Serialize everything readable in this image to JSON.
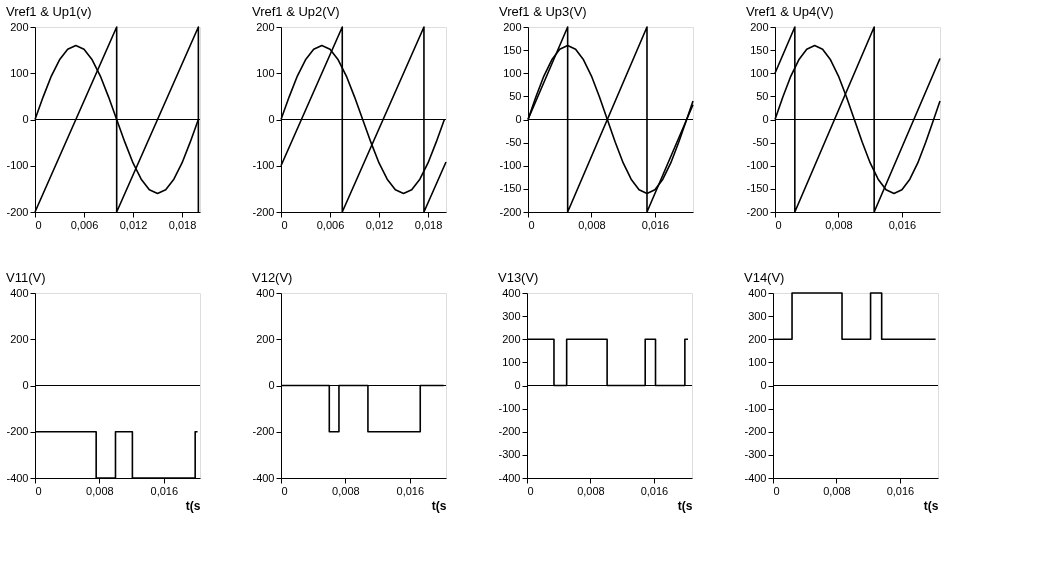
{
  "chart_data": [
    {
      "type": "line",
      "title": "Vref1 & Up1(v)",
      "xlim": [
        0,
        0.0202
      ],
      "ylim": [
        -200,
        200
      ],
      "xticks": [
        0,
        {
          "value": 0.006,
          "label": "0,006"
        },
        {
          "value": 0.012,
          "label": "0,012"
        },
        {
          "value": 0.018,
          "label": "0,018"
        }
      ],
      "yticks": [
        -200,
        -100,
        0,
        100,
        200
      ],
      "grid": false,
      "ref_lines": [
        {
          "axis": "y",
          "value": 0
        }
      ],
      "series": [
        {
          "color": "#000000",
          "x": [
            0,
            0.001,
            0.002,
            0.003,
            0.004,
            0.005,
            0.006,
            0.007,
            0.008,
            0.009,
            0.01,
            0.011,
            0.012,
            0.013,
            0.014,
            0.015,
            0.016,
            0.017,
            0.018,
            0.019,
            0.02
          ],
          "values": [
            0,
            49,
            94,
            129,
            152,
            160,
            152,
            129,
            94,
            49,
            0,
            -49,
            -94,
            -129,
            -152,
            -160,
            -152,
            -129,
            -94,
            -49,
            0
          ]
        },
        {
          "color": "#000000",
          "x": [
            0,
            0.01,
            0.01,
            0.02,
            0.02
          ],
          "values": [
            -200,
            200,
            -200,
            200,
            -200
          ]
        }
      ]
    },
    {
      "type": "line",
      "title": "Vref1 & Up2(V)",
      "xlim": [
        0,
        0.0202
      ],
      "ylim": [
        -200,
        200
      ],
      "xticks": [
        0,
        {
          "value": 0.006,
          "label": "0,006"
        },
        {
          "value": 0.012,
          "label": "0,012"
        },
        {
          "value": 0.018,
          "label": "0,018"
        }
      ],
      "yticks": [
        -200,
        -100,
        0,
        100,
        200
      ],
      "grid": false,
      "ref_lines": [
        {
          "axis": "y",
          "value": 0
        }
      ],
      "series": [
        {
          "color": "#000000",
          "x": [
            0,
            0.001,
            0.002,
            0.003,
            0.004,
            0.005,
            0.006,
            0.007,
            0.008,
            0.009,
            0.01,
            0.011,
            0.012,
            0.013,
            0.014,
            0.015,
            0.016,
            0.017,
            0.018,
            0.019,
            0.02
          ],
          "values": [
            0,
            49,
            94,
            129,
            152,
            160,
            152,
            129,
            94,
            49,
            0,
            -49,
            -94,
            -129,
            -152,
            -160,
            -152,
            -129,
            -94,
            -49,
            0
          ]
        },
        {
          "color": "#000000",
          "x": [
            0,
            0.0075,
            0.0075,
            0.0175,
            0.0175,
            0.0202
          ],
          "values": [
            -100,
            200,
            -200,
            200,
            -200,
            -92
          ]
        }
      ]
    },
    {
      "type": "line",
      "title": "Vref1 & Up3(V)",
      "xlim": [
        0,
        0.0208
      ],
      "ylim": [
        -200,
        200
      ],
      "xticks": [
        0,
        {
          "value": 0.008,
          "label": "0,008"
        },
        {
          "value": 0.016,
          "label": "0,016"
        }
      ],
      "yticks": [
        -200,
        -150,
        -100,
        -50,
        0,
        50,
        100,
        150,
        200
      ],
      "grid": false,
      "ref_lines": [
        {
          "axis": "y",
          "value": 0
        }
      ],
      "series": [
        {
          "color": "#000000",
          "x": [
            0,
            0.001,
            0.002,
            0.003,
            0.004,
            0.005,
            0.006,
            0.007,
            0.008,
            0.009,
            0.01,
            0.011,
            0.012,
            0.013,
            0.014,
            0.015,
            0.016,
            0.017,
            0.018,
            0.019,
            0.02,
            0.0208
          ],
          "values": [
            0,
            49,
            94,
            129,
            152,
            160,
            152,
            129,
            94,
            49,
            0,
            -49,
            -94,
            -129,
            -152,
            -160,
            -152,
            -129,
            -94,
            -49,
            0,
            40
          ]
        },
        {
          "color": "#000000",
          "x": [
            0,
            0.005,
            0.005,
            0.015,
            0.015,
            0.0208
          ],
          "values": [
            0,
            200,
            -200,
            200,
            -200,
            32
          ]
        }
      ]
    },
    {
      "type": "line",
      "title": "Vref1 & Up4(V)",
      "xlim": [
        0,
        0.0208
      ],
      "ylim": [
        -200,
        200
      ],
      "xticks": [
        0,
        {
          "value": 0.008,
          "label": "0,008"
        },
        {
          "value": 0.016,
          "label": "0,016"
        }
      ],
      "yticks": [
        -200,
        -150,
        -100,
        -50,
        0,
        50,
        100,
        150,
        200
      ],
      "grid": false,
      "ref_lines": [
        {
          "axis": "y",
          "value": 0
        }
      ],
      "series": [
        {
          "color": "#000000",
          "x": [
            0,
            0.001,
            0.002,
            0.003,
            0.004,
            0.005,
            0.006,
            0.007,
            0.008,
            0.009,
            0.01,
            0.011,
            0.012,
            0.013,
            0.014,
            0.015,
            0.016,
            0.017,
            0.018,
            0.019,
            0.02,
            0.0208
          ],
          "values": [
            0,
            49,
            94,
            129,
            152,
            160,
            152,
            129,
            94,
            49,
            0,
            -49,
            -94,
            -129,
            -152,
            -160,
            -152,
            -129,
            -94,
            -49,
            0,
            40
          ]
        },
        {
          "color": "#000000",
          "x": [
            0,
            0.0025,
            0.0025,
            0.0125,
            0.0125,
            0.0208
          ],
          "values": [
            100,
            200,
            -200,
            200,
            -200,
            132
          ]
        }
      ]
    },
    {
      "type": "step",
      "title": "V11(V)",
      "xlabel": "t(s",
      "xlim": [
        0,
        0.0205
      ],
      "ylim": [
        -400,
        400
      ],
      "xticks": [
        0,
        {
          "value": 0.008,
          "label": "0,008"
        },
        {
          "value": 0.016,
          "label": "0,016"
        }
      ],
      "yticks": [
        -400,
        -200,
        0,
        200,
        400
      ],
      "grid": false,
      "ref_lines": [
        {
          "axis": "y",
          "value": 0
        }
      ],
      "series": [
        {
          "color": "#000000",
          "x": [
            0,
            0.0076,
            0.01,
            0.0121,
            0.0199,
            0.0202
          ],
          "values": [
            -200,
            -400,
            -200,
            -400,
            -200,
            -200
          ]
        }
      ]
    },
    {
      "type": "step",
      "title": "V12(V)",
      "xlabel": "t(s",
      "xlim": [
        0,
        0.0205
      ],
      "ylim": [
        -400,
        400
      ],
      "xticks": [
        0,
        {
          "value": 0.008,
          "label": "0,008"
        },
        {
          "value": 0.016,
          "label": "0,016"
        }
      ],
      "yticks": [
        -400,
        -200,
        0,
        200,
        400
      ],
      "grid": false,
      "ref_lines": [
        {
          "axis": "y",
          "value": 0
        }
      ],
      "series": [
        {
          "color": "#000000",
          "x": [
            0,
            0.006,
            0.0072,
            0.0108,
            0.0173,
            0.0202
          ],
          "values": [
            0,
            -200,
            0,
            -200,
            0,
            0
          ]
        }
      ]
    },
    {
      "type": "step",
      "title": "V13(V)",
      "xlabel": "t(s",
      "xlim": [
        0,
        0.0208
      ],
      "ylim": [
        -400,
        400
      ],
      "xticks": [
        0,
        {
          "value": 0.008,
          "label": "0,008"
        },
        {
          "value": 0.016,
          "label": "0,016"
        }
      ],
      "yticks": [
        -400,
        -300,
        -200,
        -100,
        0,
        100,
        200,
        300,
        400
      ],
      "grid": false,
      "ref_lines": [
        {
          "axis": "y",
          "value": 0
        }
      ],
      "series": [
        {
          "color": "#000000",
          "x": [
            0,
            0.0034,
            0.005,
            0.0101,
            0.0149,
            0.0162,
            0.0199,
            0.0203
          ],
          "values": [
            200,
            0,
            200,
            0,
            200,
            0,
            200,
            200
          ]
        }
      ]
    },
    {
      "type": "step",
      "title": "V14(V)",
      "xlabel": "t(s",
      "xlim": [
        0,
        0.0208
      ],
      "ylim": [
        -400,
        400
      ],
      "xticks": [
        0,
        {
          "value": 0.008,
          "label": "0,008"
        },
        {
          "value": 0.016,
          "label": "0,016"
        }
      ],
      "yticks": [
        -400,
        -300,
        -200,
        -100,
        0,
        100,
        200,
        300,
        400
      ],
      "grid": false,
      "ref_lines": [
        {
          "axis": "y",
          "value": 0
        }
      ],
      "series": [
        {
          "color": "#000000",
          "x": [
            0,
            0.0024,
            0.0087,
            0.0123,
            0.0137,
            0.0205
          ],
          "values": [
            200,
            400,
            200,
            400,
            200,
            200
          ]
        }
      ]
    }
  ]
}
